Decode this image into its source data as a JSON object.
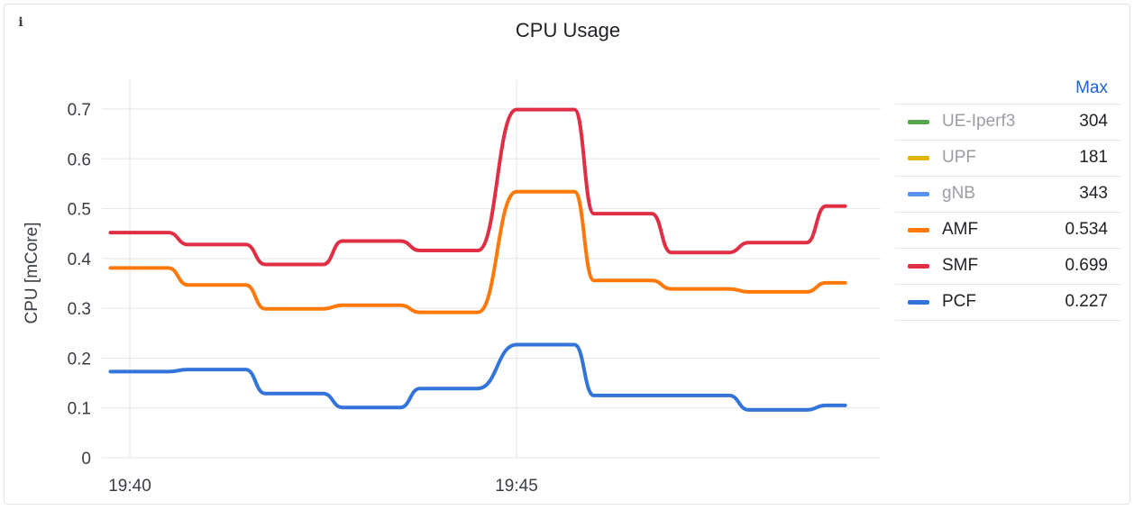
{
  "panel": {
    "title": "CPU Usage",
    "info_icon": "info-icon"
  },
  "legend": {
    "header": "Max",
    "items": [
      {
        "name": "UE-Iperf3",
        "value": "304",
        "color": "#56a64b",
        "hidden": true
      },
      {
        "name": "UPF",
        "value": "181",
        "color": "#e0b400",
        "hidden": true
      },
      {
        "name": "gNB",
        "value": "343",
        "color": "#5794f2",
        "hidden": true
      },
      {
        "name": "AMF",
        "value": "0.534",
        "color": "#ff780a",
        "hidden": false
      },
      {
        "name": "SMF",
        "value": "0.699",
        "color": "#e02f44",
        "hidden": false
      },
      {
        "name": "PCF",
        "value": "0.227",
        "color": "#3274d9",
        "hidden": false
      }
    ]
  },
  "chart_data": {
    "type": "line",
    "ylabel": "CPU [mCore]",
    "ylim": [
      0,
      0.7
    ],
    "yticks": [
      "0",
      "0.1",
      "0.2",
      "0.3",
      "0.4",
      "0.5",
      "0.6",
      "0.7"
    ],
    "xticks": [
      {
        "label": "19:40",
        "minute": 0
      },
      {
        "label": "19:45",
        "minute": 5
      }
    ],
    "grid": true,
    "legend_position": "right",
    "series": [
      {
        "name": "AMF",
        "color": "#ff780a",
        "points": [
          [
            -0.25,
            0.381
          ],
          [
            0.5,
            0.381
          ],
          [
            0.75,
            0.347
          ],
          [
            1.5,
            0.347
          ],
          [
            1.75,
            0.299
          ],
          [
            2.5,
            0.299
          ],
          [
            2.75,
            0.306
          ],
          [
            3.5,
            0.306
          ],
          [
            3.75,
            0.292
          ],
          [
            4.5,
            0.292
          ],
          [
            5.0,
            0.534
          ],
          [
            5.75,
            0.534
          ],
          [
            6.0,
            0.356
          ],
          [
            6.75,
            0.356
          ],
          [
            7.0,
            0.339
          ],
          [
            7.75,
            0.339
          ],
          [
            8.0,
            0.333
          ],
          [
            8.75,
            0.333
          ],
          [
            9.0,
            0.351
          ],
          [
            9.25,
            0.351
          ]
        ]
      },
      {
        "name": "SMF",
        "color": "#e02f44",
        "points": [
          [
            -0.25,
            0.452
          ],
          [
            0.5,
            0.452
          ],
          [
            0.75,
            0.428
          ],
          [
            1.5,
            0.428
          ],
          [
            1.75,
            0.388
          ],
          [
            2.5,
            0.388
          ],
          [
            2.75,
            0.435
          ],
          [
            3.5,
            0.435
          ],
          [
            3.75,
            0.416
          ],
          [
            4.5,
            0.416
          ],
          [
            5.0,
            0.699
          ],
          [
            5.75,
            0.699
          ],
          [
            6.0,
            0.49
          ],
          [
            6.75,
            0.49
          ],
          [
            7.0,
            0.412
          ],
          [
            7.75,
            0.412
          ],
          [
            8.0,
            0.432
          ],
          [
            8.75,
            0.432
          ],
          [
            9.0,
            0.505
          ],
          [
            9.25,
            0.505
          ]
        ]
      },
      {
        "name": "PCF",
        "color": "#3274d9",
        "points": [
          [
            -0.25,
            0.173
          ],
          [
            0.5,
            0.173
          ],
          [
            0.75,
            0.177
          ],
          [
            1.5,
            0.177
          ],
          [
            1.75,
            0.129
          ],
          [
            2.5,
            0.129
          ],
          [
            2.75,
            0.101
          ],
          [
            3.5,
            0.101
          ],
          [
            3.75,
            0.139
          ],
          [
            4.5,
            0.139
          ],
          [
            5.0,
            0.227
          ],
          [
            5.75,
            0.227
          ],
          [
            6.0,
            0.125
          ],
          [
            6.75,
            0.125
          ],
          [
            7.0,
            0.125
          ],
          [
            7.75,
            0.125
          ],
          [
            8.0,
            0.096
          ],
          [
            8.75,
            0.096
          ],
          [
            9.0,
            0.105
          ],
          [
            9.25,
            0.105
          ]
        ]
      }
    ]
  }
}
